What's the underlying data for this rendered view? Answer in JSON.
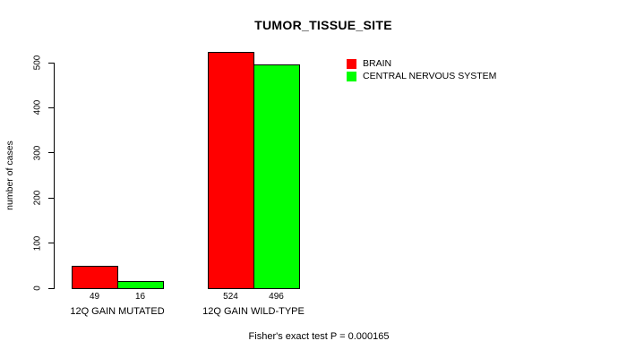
{
  "chart_data": {
    "type": "bar",
    "title": "TUMOR_TISSUE_SITE",
    "xlabel": "",
    "ylabel": "number of cases",
    "ylim": [
      0,
      500
    ],
    "yticks": [
      0,
      100,
      200,
      300,
      400,
      500
    ],
    "categories": [
      "12Q GAIN MUTATED",
      "12Q GAIN WILD-TYPE"
    ],
    "series": [
      {
        "name": "BRAIN",
        "color": "#ff0000",
        "values": [
          49,
          524
        ]
      },
      {
        "name": "CENTRAL NERVOUS SYSTEM",
        "color": "#00ff00",
        "values": [
          16,
          496
        ]
      }
    ],
    "bar_value_labels": [
      [
        49,
        16
      ],
      [
        524,
        496
      ]
    ],
    "annotation": "Fisher's exact test P = 0.000165",
    "legend_position": "top-right",
    "grid": false,
    "colors": {
      "background": "#ffffff",
      "axis": "#000000",
      "text": "#000000",
      "bar_border": "#000000"
    }
  }
}
